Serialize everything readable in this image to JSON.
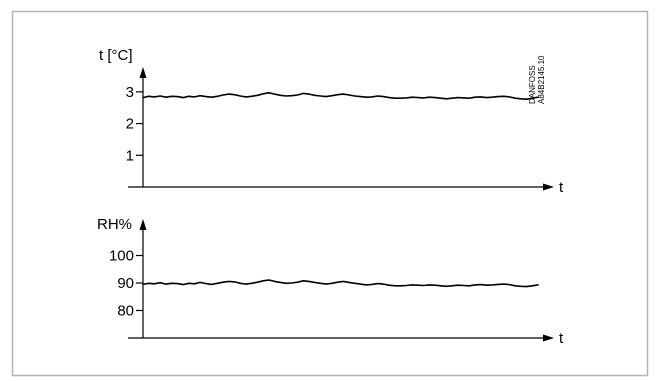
{
  "chart_data": [
    {
      "type": "line",
      "ylabel": "t [°C]",
      "xlabel": "t",
      "ylim": [
        0,
        3.5
      ],
      "yticks": [
        {
          "value": 1,
          "label": "1"
        },
        {
          "value": 2,
          "label": "2"
        },
        {
          "value": 3,
          "label": "3"
        }
      ],
      "grid": false,
      "series": [
        {
          "values": [
            2.82,
            2.86,
            2.84,
            2.87,
            2.83,
            2.86,
            2.85,
            2.82,
            2.86,
            2.84,
            2.88,
            2.85,
            2.83,
            2.86,
            2.9,
            2.93,
            2.91,
            2.87,
            2.84,
            2.86,
            2.89,
            2.94,
            2.97,
            2.93,
            2.89,
            2.87,
            2.88,
            2.9,
            2.95,
            2.93,
            2.89,
            2.87,
            2.85,
            2.88,
            2.91,
            2.93,
            2.9,
            2.87,
            2.85,
            2.83,
            2.84,
            2.87,
            2.85,
            2.82,
            2.8,
            2.8,
            2.81,
            2.83,
            2.82,
            2.81,
            2.83,
            2.82,
            2.8,
            2.78,
            2.8,
            2.82,
            2.81,
            2.8,
            2.83,
            2.84,
            2.82,
            2.83,
            2.85,
            2.86,
            2.84,
            2.8,
            2.78,
            2.77,
            2.8,
            2.83
          ]
        }
      ]
    },
    {
      "type": "line",
      "ylabel": "RH%",
      "xlabel": "t",
      "ylim": [
        70,
        110
      ],
      "yticks": [
        {
          "value": 80,
          "label": "80"
        },
        {
          "value": 90,
          "label": "90"
        },
        {
          "value": 100,
          "label": "100"
        }
      ],
      "grid": false,
      "series": [
        {
          "values": [
            89.5,
            89.9,
            89.7,
            90.1,
            89.6,
            89.9,
            89.8,
            89.4,
            89.9,
            89.7,
            90.2,
            89.8,
            89.5,
            89.9,
            90.3,
            90.6,
            90.4,
            89.9,
            89.6,
            89.9,
            90.3,
            90.8,
            91.1,
            90.6,
            90.2,
            89.9,
            90.0,
            90.3,
            90.8,
            90.6,
            90.2,
            89.9,
            89.6,
            89.9,
            90.3,
            90.6,
            90.2,
            89.9,
            89.6,
            89.3,
            89.5,
            89.8,
            89.6,
            89.2,
            89.0,
            89.0,
            89.1,
            89.3,
            89.2,
            89.1,
            89.3,
            89.2,
            89.0,
            88.8,
            89.0,
            89.2,
            89.1,
            89.0,
            89.3,
            89.4,
            89.2,
            89.3,
            89.5,
            89.6,
            89.4,
            89.0,
            88.8,
            88.7,
            89.0,
            89.3
          ]
        }
      ]
    }
  ],
  "reference_code": [
    "DANFOSS",
    "A84B2145.10"
  ],
  "colors": {
    "line": "#000000",
    "frame": "#b4b4b4",
    "background": "#ffffff"
  }
}
